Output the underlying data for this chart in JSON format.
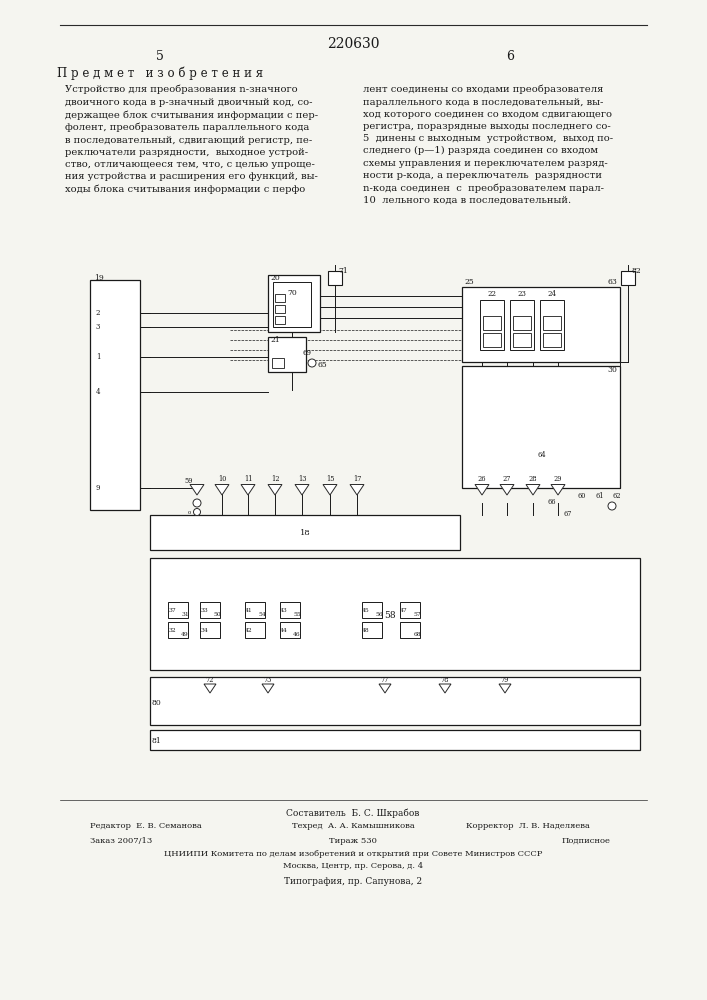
{
  "page_title": "220630",
  "col_left_num": "5",
  "col_right_num": "6",
  "section_title": "П р е д м е т   и з о б р е т е н и я",
  "main_text_left": "Устройство для преобразования n-значного\nдвоичного кода в p-значный двоичный код, со-\nдержащее блок считывания информации с пер-\nфолент, преобразователь параллельного кода\nв последовательный, сдвигающий регистр, пе-\nреключатели разрядности,  выходное устрой-\nство, отличающееся тем, что, с целью упроще-\nния устройства и расширения его функций, вы-\nходы блока считывания информации с перфо",
  "main_text_right": "лент соединены со входами преобразователя\nпараллельного кода в последовательный, вы-\nход которого соединен со входом сдвигающего\nрегистра, поразрядные выходы последнего со-\n5  динены с выходным  устройством,  выход по-\nследнего (p—1) разряда соединен со входом\nсхемы управления и переключателем разряд-\nности p-кода, а переключатель  разрядности\nn-кода соединен  с  преобразователем парал-\n10  лельного кода в последовательный.",
  "footer_composer": "Составитель  Б. С. Шкрабов",
  "footer_editor": "Редактор  Е. В. Семанова",
  "footer_tech": "Техред  А. А. Камышникова",
  "footer_corrector": "Корректор  Л. В. Наделяева",
  "footer_order": "Заказ 2007/13",
  "footer_circulation": "Тираж 530",
  "footer_podpisnoe": "Подписное",
  "footer_tsniipi": "ЦНИИПИ Комитета по делам изобретений и открытий при Совете Министров СССР",
  "footer_address": "Москва, Центр, пр. Серова, д. 4",
  "footer_typography": "Типография, пр. Сапунова, 2",
  "bg_color": "#f5f5f0",
  "text_color": "#1a1a1a",
  "line_color": "#2a2a2a"
}
